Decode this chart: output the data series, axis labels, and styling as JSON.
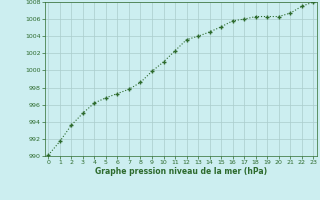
{
  "x": [
    0,
    1,
    2,
    3,
    4,
    5,
    6,
    7,
    8,
    9,
    10,
    11,
    12,
    13,
    14,
    15,
    16,
    17,
    18,
    19,
    20,
    21,
    22,
    23
  ],
  "y": [
    990.1,
    991.7,
    993.6,
    995.0,
    996.2,
    996.8,
    997.3,
    997.8,
    998.6,
    999.9,
    1001.0,
    1002.3,
    1003.6,
    1004.0,
    1004.5,
    1005.1,
    1005.8,
    1006.0,
    1006.3,
    1006.3,
    1006.3,
    1006.7,
    1007.5,
    1008.0
  ],
  "line_color": "#2d6a2d",
  "marker": "+",
  "marker_size": 3.5,
  "marker_edge_width": 1.0,
  "line_width": 0.8,
  "bg_color": "#cceef0",
  "grid_color": "#aacccc",
  "tick_color": "#2d6a2d",
  "label_color": "#2d6a2d",
  "xlabel": "Graphe pression niveau de la mer (hPa)",
  "ylim": [
    990,
    1008
  ],
  "yticks": [
    990,
    992,
    994,
    996,
    998,
    1000,
    1002,
    1004,
    1006,
    1008
  ],
  "xticks": [
    0,
    1,
    2,
    3,
    4,
    5,
    6,
    7,
    8,
    9,
    10,
    11,
    12,
    13,
    14,
    15,
    16,
    17,
    18,
    19,
    20,
    21,
    22,
    23
  ],
  "xlim": [
    -0.3,
    23.3
  ]
}
